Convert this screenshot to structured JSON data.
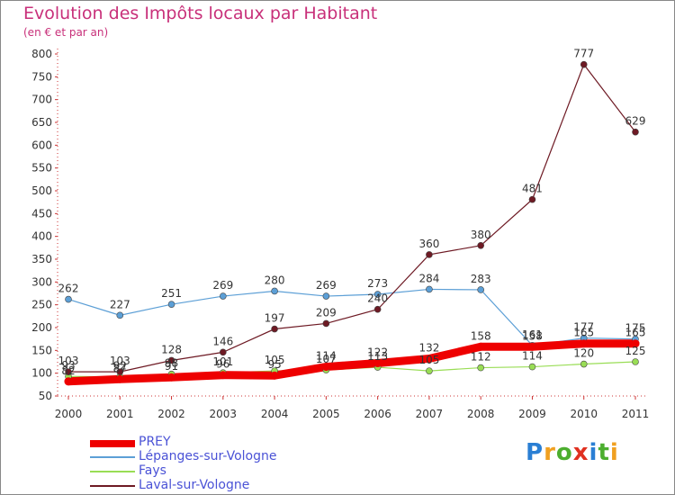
{
  "title": "Evolution des Impôts locaux par Habitant",
  "subtitle": "(en € et par an)",
  "logo": {
    "text": "Proxiti",
    "letters": [
      "P",
      "r",
      "o",
      "x",
      "i",
      "t",
      "i"
    ],
    "letter_colors": [
      "#2a7fd4",
      "#f0a020",
      "#4cae2f",
      "#e03020",
      "#2a7fd4",
      "#4cae2f",
      "#f0a020"
    ]
  },
  "chart_data": {
    "type": "line",
    "categories": [
      "2000",
      "2001",
      "2002",
      "2003",
      "2004",
      "2005",
      "2006",
      "2007",
      "2008",
      "2009",
      "2010",
      "2011"
    ],
    "ylim": [
      50,
      800
    ],
    "yticks": [
      50,
      100,
      150,
      200,
      250,
      300,
      350,
      400,
      450,
      500,
      550,
      600,
      650,
      700,
      750,
      800
    ],
    "grid": false,
    "legend_position": "bottom-left",
    "series": [
      {
        "name": "PREY",
        "color": "#ee0000",
        "values": [
          82,
          87,
          91,
          96,
          95,
          114,
          122,
          132,
          158,
          158,
          165,
          165
        ],
        "labels": [
          "82",
          "87",
          "91",
          "96",
          "95",
          "114",
          "122",
          "132",
          "158",
          "158",
          "165",
          "165"
        ]
      },
      {
        "name": "Lépanges-sur-Vologne",
        "color": "#5c9fd6",
        "values": [
          262,
          227,
          251,
          269,
          280,
          269,
          273,
          284,
          283,
          161,
          177,
          175
        ],
        "labels": [
          "262",
          "227",
          "251",
          "269",
          "280",
          "269",
          "273",
          "284",
          "283",
          "161",
          "177",
          "175"
        ]
      },
      {
        "name": "Fays",
        "color": "#99dd55",
        "values": [
          93,
          92,
          98,
          101,
          105,
          107,
          113,
          105,
          112,
          114,
          120,
          125
        ],
        "labels": [
          "93",
          "92",
          "98",
          "101",
          "105",
          "107",
          "113",
          "105",
          "112",
          "114",
          "120",
          "125"
        ]
      },
      {
        "name": "Laval-sur-Vologne",
        "color": "#6e1a24",
        "values": [
          103,
          103,
          128,
          146,
          197,
          209,
          240,
          360,
          380,
          481,
          777,
          629
        ],
        "labels": [
          "103",
          "103",
          "128",
          "146",
          "197",
          "209",
          "240",
          "360",
          "380",
          "481",
          "777",
          "629"
        ]
      }
    ]
  }
}
